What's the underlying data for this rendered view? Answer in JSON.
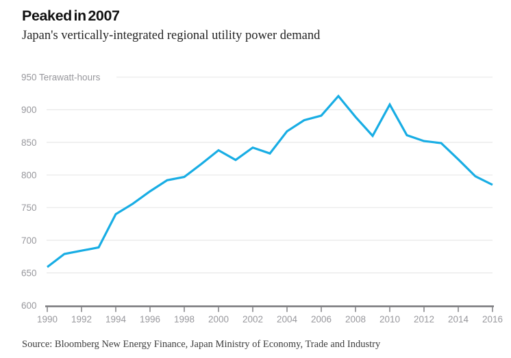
{
  "header": {
    "title": "Peaked in 2007",
    "subtitle": "Japan's vertically-integrated regional utility power demand"
  },
  "chart_data": {
    "type": "line",
    "title": "Peaked in 2007",
    "subtitle": "Japan's vertically-integrated regional utility power demand",
    "ylabel": "Terawatt-hours",
    "top_axis_label": "950 Terawatt-hours",
    "x": [
      1990,
      1991,
      1992,
      1993,
      1994,
      1995,
      1996,
      1997,
      1998,
      1999,
      2000,
      2001,
      2002,
      2003,
      2004,
      2005,
      2006,
      2007,
      2008,
      2009,
      2010,
      2011,
      2012,
      2013,
      2014,
      2015,
      2016
    ],
    "values": [
      659,
      679,
      684,
      689,
      740,
      756,
      775,
      792,
      797,
      817,
      838,
      823,
      842,
      833,
      867,
      884,
      891,
      921,
      889,
      860,
      908,
      861,
      852,
      849,
      824,
      798,
      785
    ],
    "ylim": [
      600,
      950
    ],
    "yticks": [
      600,
      650,
      700,
      750,
      800,
      850,
      900,
      950
    ],
    "xticks": [
      1990,
      1992,
      1994,
      1996,
      1998,
      2000,
      2002,
      2004,
      2006,
      2008,
      2010,
      2012,
      2014,
      2016
    ],
    "grid": true,
    "legend": "none",
    "colors": {
      "line": "#18ade4",
      "grid": "#e8e8e8",
      "axis": "#76767a",
      "tick_labels": "#97979c"
    }
  },
  "footer": {
    "source": "Source: Bloomberg New Energy Finance, Japan Ministry of Economy, Trade and Industry"
  }
}
